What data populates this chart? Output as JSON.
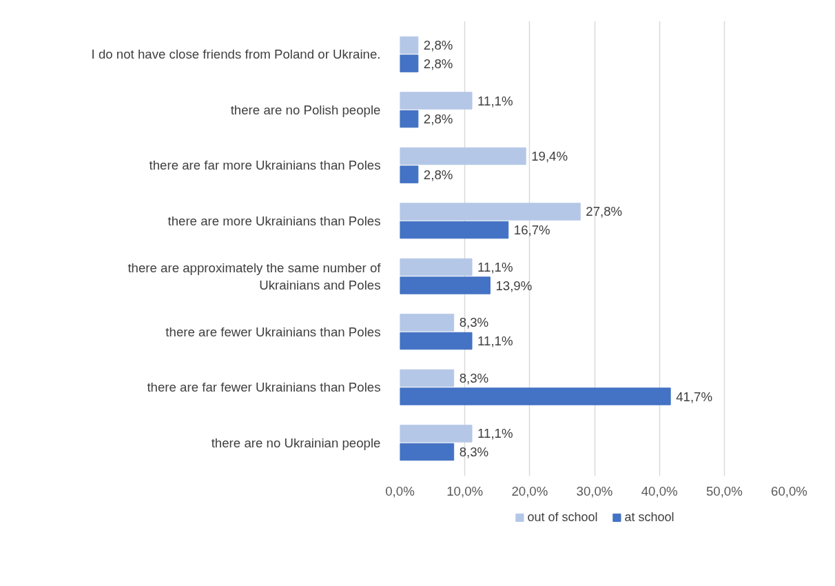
{
  "chart_data": {
    "type": "bar",
    "orientation": "horizontal",
    "categories": [
      "I do not have close friends from Poland or Ukraine.",
      "there are no Polish people",
      "there are far more Ukrainians than Poles",
      "there are more Ukrainians than Poles",
      "there are approximately the same number of Ukrainians and Poles",
      "there are fewer Ukrainians than Poles",
      "there are far fewer Ukrainians than Poles",
      "there are no Ukrainian people"
    ],
    "series": [
      {
        "name": "out of school",
        "color": "#b4c7e7",
        "values": [
          2.8,
          11.1,
          19.4,
          27.8,
          11.1,
          8.3,
          8.3,
          11.1
        ],
        "value_labels": [
          "2,8%",
          "11,1%",
          "19,4%",
          "27,8%",
          "11,1%",
          "8,3%",
          "8,3%",
          "11,1%"
        ]
      },
      {
        "name": "at school",
        "color": "#4472c4",
        "values": [
          2.8,
          2.8,
          2.8,
          16.7,
          13.9,
          11.1,
          41.7,
          8.3
        ],
        "value_labels": [
          "2,8%",
          "2,8%",
          "2,8%",
          "16,7%",
          "13,9%",
          "11,1%",
          "41,7%",
          "8,3%"
        ]
      }
    ],
    "xlim": [
      0,
      60
    ],
    "xticks": [
      {
        "value": 0,
        "label": "0,0%"
      },
      {
        "value": 10,
        "label": "10,0%"
      },
      {
        "value": 20,
        "label": "20,0%"
      },
      {
        "value": 30,
        "label": "30,0%"
      },
      {
        "value": 40,
        "label": "40,0%"
      },
      {
        "value": 50,
        "label": "50,0%"
      },
      {
        "value": 60,
        "label": "60,0%"
      }
    ],
    "grid": "x",
    "legend": "bottom"
  }
}
